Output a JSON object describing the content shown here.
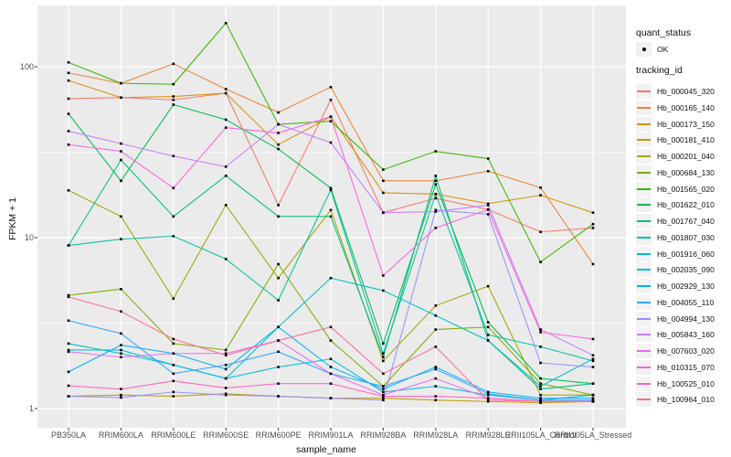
{
  "chart_data": {
    "type": "line",
    "title": "",
    "xlabel": "sample_name",
    "ylabel": "FPKM + 1",
    "y_scale": "log10",
    "grid": true,
    "legend_position": "right",
    "point_shape": "small black square (quant_status OK)",
    "y_ticks": [
      {
        "label": "1",
        "value": 1
      },
      {
        "label": "10",
        "value": 10
      },
      {
        "label": "100",
        "value": 100
      }
    ],
    "y_minor_ticks": [
      3.1623,
      31.623
    ],
    "ylim_log": [
      0.93,
      245
    ],
    "categories": [
      "PB350LA",
      "RRIM600LA",
      "RRIM600LE",
      "RRIM600SE",
      "RRIM600PE",
      "RRIM901LA",
      "RRIM928BA",
      "RRIM928LA",
      "RRIM928LE",
      "RRII105LA_Control",
      "RRII105LA_Stressed"
    ],
    "series": [
      {
        "name": "Hb_000045_320",
        "color": "#F8766D",
        "values": [
          65,
          66,
          64,
          70,
          15.5,
          64,
          14,
          17,
          14.6,
          10.8,
          11.4
        ]
      },
      {
        "name": "Hb_000165_140",
        "color": "#EA8331",
        "values": [
          92,
          80,
          104,
          74,
          54,
          76,
          21.5,
          21.5,
          24.5,
          19.6,
          7.0
        ]
      },
      {
        "name": "Hb_000173_150",
        "color": "#D89000",
        "values": [
          83,
          66,
          67,
          70,
          35,
          51,
          18.3,
          18,
          15.8,
          17.7,
          14.0
        ]
      },
      {
        "name": "Hb_000181_410",
        "color": "#C09B00",
        "values": [
          1.18,
          1.2,
          1.18,
          1.22,
          1.18,
          1.15,
          1.15,
          1.12,
          1.1,
          1.08,
          1.1
        ]
      },
      {
        "name": "Hb_000201_040",
        "color": "#A3A500",
        "values": [
          18.9,
          13.3,
          4.4,
          15.5,
          5.8,
          14.5,
          1.9,
          4.0,
          5.2,
          1.2,
          1.2
        ]
      },
      {
        "name": "Hb_000684_130",
        "color": "#7CAE00",
        "values": [
          4.6,
          5.0,
          2.4,
          2.2,
          7.0,
          2.5,
          1.35,
          2.9,
          3.0,
          1.4,
          1.2
        ]
      },
      {
        "name": "Hb_001565_020",
        "color": "#39B600",
        "values": [
          106,
          80,
          79,
          180,
          46,
          48,
          25,
          32,
          29,
          7.2,
          12.0
        ]
      },
      {
        "name": "Hb_001622_010",
        "color": "#00BB4E",
        "values": [
          53,
          21.5,
          60,
          49,
          33,
          19.5,
          2.4,
          20.5,
          3.2,
          1.5,
          1.4
        ]
      },
      {
        "name": "Hb_001767_040",
        "color": "#00BF7D",
        "values": [
          9.0,
          28.5,
          13.3,
          23,
          13.3,
          13.3,
          2.0,
          23,
          2.5,
          1.3,
          1.4
        ]
      },
      {
        "name": "Hb_001807_030",
        "color": "#00C1A3",
        "values": [
          9.0,
          9.8,
          10.2,
          7.5,
          4.3,
          19.0,
          2.1,
          18,
          2.7,
          2.3,
          1.9
        ]
      },
      {
        "name": "Hb_001916_060",
        "color": "#00BFC4",
        "values": [
          2.4,
          2.1,
          1.8,
          1.5,
          3.0,
          5.8,
          4.9,
          3.5,
          2.5,
          1.35,
          1.95
        ]
      },
      {
        "name": "Hb_002035_090",
        "color": "#00BAE0",
        "values": [
          2.2,
          2.2,
          1.8,
          1.5,
          1.75,
          1.95,
          1.25,
          1.35,
          1.2,
          1.12,
          1.2
        ]
      },
      {
        "name": "Hb_002929_130",
        "color": "#00B0F6",
        "values": [
          1.64,
          2.35,
          2.1,
          1.7,
          3.0,
          1.75,
          1.3,
          1.75,
          1.25,
          1.15,
          1.15
        ]
      },
      {
        "name": "Hb_004055_110",
        "color": "#35A2FF",
        "values": [
          3.27,
          2.75,
          1.6,
          1.8,
          2.15,
          1.6,
          1.35,
          1.7,
          1.22,
          1.12,
          1.12
        ]
      },
      {
        "name": "Hb_004994_130",
        "color": "#9590FF",
        "values": [
          1.18,
          1.16,
          1.25,
          1.2,
          1.18,
          1.15,
          1.12,
          14.5,
          13.7,
          1.85,
          1.75
        ]
      },
      {
        "name": "Hb_005843_160",
        "color": "#C77CFF",
        "values": [
          42,
          35.5,
          30,
          26,
          46,
          36,
          14,
          14.2,
          15.5,
          2.9,
          2.05
        ]
      },
      {
        "name": "Hb_007603_020",
        "color": "#E76BF3",
        "values": [
          2.15,
          2.0,
          2.1,
          2.1,
          2.5,
          1.6,
          1.2,
          1.5,
          1.15,
          1.1,
          1.1
        ]
      },
      {
        "name": "Hb_010315_070",
        "color": "#FA62DB",
        "values": [
          35,
          32,
          19.5,
          44,
          41,
          51,
          6.0,
          11.4,
          14.6,
          2.8,
          2.55
        ]
      },
      {
        "name": "Hb_100525_010",
        "color": "#FF62BC",
        "values": [
          1.36,
          1.3,
          1.45,
          1.32,
          1.4,
          1.4,
          1.18,
          1.18,
          1.15,
          1.1,
          1.1
        ]
      },
      {
        "name": "Hb_100964_010",
        "color": "#FF6A98",
        "values": [
          4.5,
          3.7,
          2.55,
          2.05,
          2.5,
          3.0,
          1.6,
          2.3,
          1.12,
          1.1,
          1.1
        ]
      }
    ]
  },
  "legend": {
    "quant_status": {
      "title": "quant_status",
      "items": [
        {
          "label": "OK"
        }
      ]
    },
    "tracking_id": {
      "title": "tracking_id"
    }
  },
  "colors": {
    "panel_bg": "#EBEBEB",
    "grid_major": "#FFFFFF",
    "grid_minor": "#F7F7F7",
    "point": "#000000",
    "tick_text": "#4D4D4D",
    "title_text": "#111111",
    "legend_key_bg": "#F2F2F2"
  }
}
